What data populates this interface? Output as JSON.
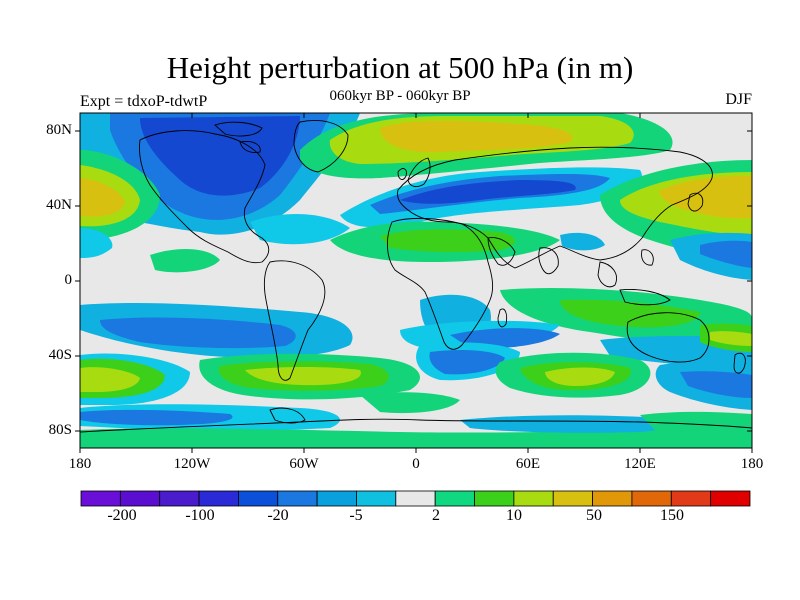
{
  "title": "Height perturbation at 500 hPa (in m)",
  "subtitle": "060kyr BP - 060kyr BP",
  "experiment": "Expt = tdxoP-tdwtP",
  "season": "DJF",
  "lat_labels": [
    "80N",
    "40N",
    "0",
    "40S",
    "80S"
  ],
  "lon_labels": [
    "180",
    "120W",
    "60W",
    "0",
    "60E",
    "120E",
    "180"
  ],
  "colorbar": {
    "colors": [
      "#6a0fd8",
      "#5a0fd0",
      "#4a1ccc",
      "#2a2ad6",
      "#0a50d8",
      "#1a78e0",
      "#0aa0de",
      "#10c0e0",
      "#e8e8e8",
      "#10d880",
      "#3cd01a",
      "#a8dc10",
      "#d8c010",
      "#e09808",
      "#e06808",
      "#e03a18",
      "#e00000"
    ],
    "labels": [
      "-200",
      "-100",
      "-20",
      "-5",
      "2",
      "10",
      "50",
      "150"
    ]
  },
  "palette": {
    "deep_blue": "#1448d0",
    "blue": "#1a78e0",
    "light_blue": "#10b0e0",
    "cyan": "#10c8e8",
    "neutral": "#e8e8e8",
    "green": "#14d47a",
    "bright_green": "#3cd01a",
    "yellow_green": "#a8dc10",
    "gold": "#d8c010",
    "land_outline": "#000000"
  }
}
